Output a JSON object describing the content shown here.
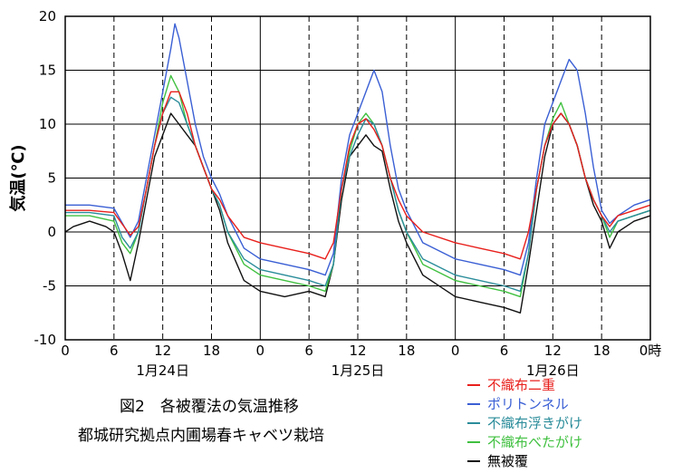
{
  "chart_data": {
    "type": "line",
    "ylabel": "気温(℃)",
    "ylim": [
      -10,
      20
    ],
    "yticks": [
      -10,
      -5,
      0,
      5,
      10,
      15,
      20
    ],
    "x_unit": "hour",
    "xlim": [
      0,
      72
    ],
    "xticks": [
      0,
      6,
      12,
      18,
      24,
      30,
      36,
      42,
      48,
      54,
      60,
      66,
      72
    ],
    "xtick_labels": [
      "0",
      "6",
      "12",
      "18",
      "0",
      "6",
      "12",
      "18",
      "0",
      "6",
      "12",
      "18",
      "0時"
    ],
    "day_labels": [
      {
        "x": 12,
        "text": "1月24日"
      },
      {
        "x": 36,
        "text": "1月25日"
      },
      {
        "x": 60,
        "text": "1月26日"
      }
    ],
    "grid": true,
    "legend_position": "bottom-right",
    "series": [
      {
        "name": "不織布二重",
        "color": "#e8201c",
        "points": [
          [
            0,
            2
          ],
          [
            3,
            2
          ],
          [
            6,
            1.8
          ],
          [
            8,
            -0.3
          ],
          [
            9,
            0.5
          ],
          [
            10,
            4
          ],
          [
            11,
            8
          ],
          [
            12,
            11
          ],
          [
            13,
            13
          ],
          [
            14,
            13
          ],
          [
            15,
            11
          ],
          [
            16,
            8
          ],
          [
            17,
            6
          ],
          [
            18,
            4
          ],
          [
            19,
            3
          ],
          [
            20,
            1.5
          ],
          [
            22,
            -0.5
          ],
          [
            24,
            -1
          ],
          [
            27,
            -1.5
          ],
          [
            30,
            -2
          ],
          [
            32,
            -2.5
          ],
          [
            33,
            -1
          ],
          [
            34,
            4
          ],
          [
            35,
            8
          ],
          [
            36,
            10
          ],
          [
            37,
            10.5
          ],
          [
            38,
            9.5
          ],
          [
            39,
            8
          ],
          [
            40,
            5
          ],
          [
            41,
            3
          ],
          [
            42,
            1.5
          ],
          [
            44,
            0
          ],
          [
            48,
            -1
          ],
          [
            51,
            -1.5
          ],
          [
            54,
            -2
          ],
          [
            56,
            -2.5
          ],
          [
            57,
            0
          ],
          [
            58,
            4
          ],
          [
            59,
            8
          ],
          [
            60,
            10
          ],
          [
            61,
            11
          ],
          [
            62,
            10
          ],
          [
            63,
            8
          ],
          [
            64,
            5
          ],
          [
            65,
            3
          ],
          [
            66,
            1.5
          ],
          [
            67,
            0.5
          ],
          [
            68,
            1.5
          ],
          [
            70,
            2
          ],
          [
            72,
            2.5
          ]
        ]
      },
      {
        "name": "ポリトンネル",
        "color": "#3a5fd4",
        "points": [
          [
            0,
            2.5
          ],
          [
            3,
            2.5
          ],
          [
            6,
            2.2
          ],
          [
            8,
            -0.5
          ],
          [
            9,
            1
          ],
          [
            10,
            5
          ],
          [
            11,
            9
          ],
          [
            12,
            13
          ],
          [
            13,
            17
          ],
          [
            13.5,
            19.3
          ],
          [
            14,
            18
          ],
          [
            15,
            14
          ],
          [
            16,
            10
          ],
          [
            17,
            7
          ],
          [
            18,
            5
          ],
          [
            19,
            3.5
          ],
          [
            20,
            1.5
          ],
          [
            22,
            -1.5
          ],
          [
            24,
            -2.5
          ],
          [
            27,
            -3
          ],
          [
            30,
            -3.5
          ],
          [
            32,
            -4
          ],
          [
            33,
            -2
          ],
          [
            34,
            5
          ],
          [
            35,
            9
          ],
          [
            36,
            11
          ],
          [
            37,
            13
          ],
          [
            38,
            15
          ],
          [
            39,
            13
          ],
          [
            40,
            8
          ],
          [
            41,
            4
          ],
          [
            42,
            2
          ],
          [
            44,
            -1
          ],
          [
            48,
            -2.5
          ],
          [
            51,
            -3
          ],
          [
            54,
            -3.5
          ],
          [
            56,
            -4
          ],
          [
            57,
            -1
          ],
          [
            58,
            5
          ],
          [
            59,
            10
          ],
          [
            60,
            12
          ],
          [
            61,
            14
          ],
          [
            62,
            16
          ],
          [
            63,
            15
          ],
          [
            64,
            11
          ],
          [
            65,
            6
          ],
          [
            66,
            2
          ],
          [
            67,
            0.8
          ],
          [
            68,
            1.5
          ],
          [
            70,
            2.5
          ],
          [
            72,
            3
          ]
        ]
      },
      {
        "name": "不織布浮きがけ",
        "color": "#2a8c9a",
        "points": [
          [
            0,
            1.8
          ],
          [
            3,
            1.8
          ],
          [
            6,
            1.5
          ],
          [
            7,
            -0.5
          ],
          [
            8,
            -1.5
          ],
          [
            9,
            0
          ],
          [
            10,
            4
          ],
          [
            11,
            8
          ],
          [
            12,
            11
          ],
          [
            13,
            12.5
          ],
          [
            14,
            12
          ],
          [
            15,
            10
          ],
          [
            16,
            8
          ],
          [
            17,
            6
          ],
          [
            18,
            4
          ],
          [
            19,
            2.5
          ],
          [
            20,
            0
          ],
          [
            22,
            -2.5
          ],
          [
            24,
            -3.5
          ],
          [
            27,
            -4
          ],
          [
            30,
            -4.5
          ],
          [
            32,
            -5
          ],
          [
            33,
            -3
          ],
          [
            34,
            4
          ],
          [
            35,
            7
          ],
          [
            36,
            9
          ],
          [
            37,
            10.5
          ],
          [
            38,
            10
          ],
          [
            39,
            8
          ],
          [
            40,
            5
          ],
          [
            41,
            2
          ],
          [
            42,
            0
          ],
          [
            44,
            -2.5
          ],
          [
            48,
            -4
          ],
          [
            51,
            -4.5
          ],
          [
            54,
            -5
          ],
          [
            56,
            -5.5
          ],
          [
            57,
            -2
          ],
          [
            58,
            4
          ],
          [
            59,
            8
          ],
          [
            60,
            10
          ],
          [
            61,
            11
          ],
          [
            62,
            10
          ],
          [
            63,
            8
          ],
          [
            64,
            5
          ],
          [
            65,
            3
          ],
          [
            66,
            1.5
          ],
          [
            67,
            0
          ],
          [
            68,
            1
          ],
          [
            70,
            1.5
          ],
          [
            72,
            2
          ]
        ]
      },
      {
        "name": "不織布べたがけ",
        "color": "#40c040",
        "points": [
          [
            0,
            1.5
          ],
          [
            3,
            1.5
          ],
          [
            6,
            1
          ],
          [
            7,
            -1
          ],
          [
            8,
            -2
          ],
          [
            9,
            0
          ],
          [
            10,
            4
          ],
          [
            11,
            8
          ],
          [
            12,
            12
          ],
          [
            13,
            14.5
          ],
          [
            14,
            13
          ],
          [
            15,
            10
          ],
          [
            16,
            8
          ],
          [
            17,
            6
          ],
          [
            18,
            4
          ],
          [
            19,
            2.5
          ],
          [
            20,
            0
          ],
          [
            22,
            -3
          ],
          [
            24,
            -4
          ],
          [
            27,
            -4.5
          ],
          [
            30,
            -5
          ],
          [
            32,
            -5.5
          ],
          [
            33,
            -3
          ],
          [
            34,
            4
          ],
          [
            35,
            7.5
          ],
          [
            36,
            10
          ],
          [
            37,
            11
          ],
          [
            38,
            10
          ],
          [
            39,
            8
          ],
          [
            40,
            5
          ],
          [
            41,
            2
          ],
          [
            42,
            0
          ],
          [
            44,
            -3
          ],
          [
            48,
            -4.5
          ],
          [
            51,
            -5
          ],
          [
            54,
            -5.5
          ],
          [
            56,
            -6
          ],
          [
            57,
            -2
          ],
          [
            58,
            4
          ],
          [
            59,
            8
          ],
          [
            60,
            10.5
          ],
          [
            61,
            12
          ],
          [
            62,
            10
          ],
          [
            63,
            8
          ],
          [
            64,
            5
          ],
          [
            65,
            3
          ],
          [
            66,
            1.5
          ],
          [
            67,
            -0.5
          ],
          [
            68,
            1
          ],
          [
            70,
            1.5
          ],
          [
            72,
            2
          ]
        ]
      },
      {
        "name": "無被覆",
        "color": "#111111",
        "points": [
          [
            0,
            0
          ],
          [
            1,
            0.5
          ],
          [
            3,
            1
          ],
          [
            5,
            0.5
          ],
          [
            6,
            0
          ],
          [
            7,
            -2
          ],
          [
            8,
            -4.5
          ],
          [
            9,
            -1
          ],
          [
            10,
            3
          ],
          [
            11,
            7
          ],
          [
            12,
            9
          ],
          [
            13,
            11
          ],
          [
            14,
            10
          ],
          [
            15,
            9
          ],
          [
            16,
            8
          ],
          [
            17,
            6
          ],
          [
            18,
            4
          ],
          [
            19,
            2
          ],
          [
            20,
            -1
          ],
          [
            22,
            -4.5
          ],
          [
            24,
            -5.5
          ],
          [
            27,
            -6
          ],
          [
            30,
            -5.5
          ],
          [
            32,
            -6
          ],
          [
            33,
            -3
          ],
          [
            34,
            3
          ],
          [
            35,
            7
          ],
          [
            36,
            8
          ],
          [
            37,
            9
          ],
          [
            38,
            8
          ],
          [
            39,
            7.5
          ],
          [
            40,
            4
          ],
          [
            41,
            1
          ],
          [
            42,
            -1
          ],
          [
            44,
            -4
          ],
          [
            48,
            -6
          ],
          [
            51,
            -6.5
          ],
          [
            54,
            -7
          ],
          [
            56,
            -7.5
          ],
          [
            57,
            -3
          ],
          [
            58,
            2
          ],
          [
            59,
            7
          ],
          [
            60,
            10
          ],
          [
            61,
            11
          ],
          [
            62,
            10
          ],
          [
            63,
            8
          ],
          [
            64,
            5
          ],
          [
            65,
            2.5
          ],
          [
            66,
            1
          ],
          [
            67,
            -1.5
          ],
          [
            68,
            0
          ],
          [
            70,
            1
          ],
          [
            72,
            1.5
          ]
        ]
      }
    ]
  },
  "caption": {
    "line1": "図2　各被覆法の気温推移",
    "line2": "都城研究拠点内圃場春キャベツ栽培"
  }
}
